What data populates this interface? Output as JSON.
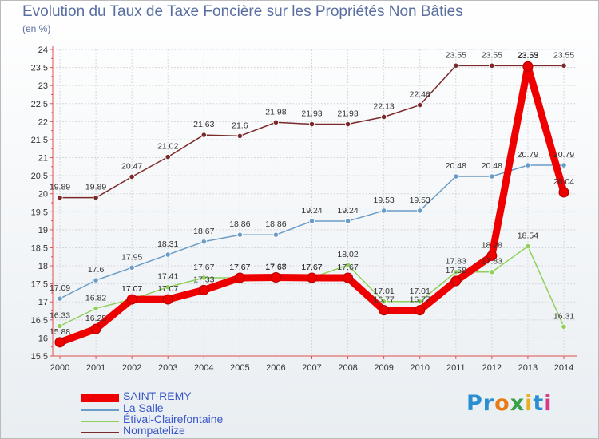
{
  "colors": {
    "axis_label": "#333333",
    "title": "#5a6fa0",
    "legend_text": "#3a58c8"
  },
  "brand": {
    "text": "Proxiti",
    "letter_colors": [
      "#2a8fd0",
      "#2a8fd0",
      "#e87a18",
      "#3aa04a",
      "#e8b020",
      "#2a8fd0",
      "#d83a8a"
    ]
  },
  "chart_data": {
    "type": "line",
    "title": "Evolution du Taux de Taxe Foncière sur les Propriétés Non Bâties",
    "ylabel": "(en %)",
    "xlabel": "",
    "ylim": [
      15.5,
      24
    ],
    "y_ticks": [
      "15.5",
      "16",
      "16.5",
      "17",
      "17.5",
      "18",
      "18.5",
      "19",
      "19.5",
      "20",
      "20.5",
      "21",
      "21.5",
      "22",
      "22.5",
      "23",
      "23.5",
      "24"
    ],
    "categories": [
      "2000",
      "2001",
      "2002",
      "2003",
      "2004",
      "2005",
      "2006",
      "2007",
      "2008",
      "2009",
      "2010",
      "2011",
      "2012",
      "2013",
      "2014"
    ],
    "series": [
      {
        "name": "Nompatelize",
        "color": "#7a2a2a",
        "values": [
          19.89,
          19.89,
          20.47,
          21.02,
          21.63,
          21.6,
          21.98,
          21.93,
          21.93,
          22.13,
          22.46,
          23.55,
          23.55,
          23.55,
          23.55
        ],
        "labels": [
          "19.89",
          "19.89",
          "20.47",
          "21.02",
          "21.63",
          "21.6",
          "21.98",
          "21.93",
          "21.93",
          "22.13",
          "22.46",
          "23.55",
          "23.55",
          "23.55",
          "23.55"
        ]
      },
      {
        "name": "La Salle",
        "color": "#6a9cc8",
        "values": [
          17.09,
          17.6,
          17.95,
          18.31,
          18.67,
          18.86,
          18.86,
          19.24,
          19.24,
          19.53,
          19.53,
          20.48,
          20.48,
          20.79,
          20.79
        ],
        "labels": [
          "17.09",
          "17.6",
          "17.95",
          "18.31",
          "18.67",
          "18.86",
          "18.86",
          "19.24",
          "19.24",
          "19.53",
          "19.53",
          "20.48",
          "20.48",
          "20.79",
          "20.79"
        ]
      },
      {
        "name": "Étival-Clairefontaine",
        "color": "#8ed05a",
        "values": [
          16.33,
          16.82,
          17.07,
          17.41,
          17.67,
          17.67,
          17.67,
          17.67,
          18.02,
          17.01,
          17.01,
          17.83,
          17.83,
          18.54,
          16.31
        ],
        "labels": [
          "16.33",
          "16.82",
          "17.07",
          "17.41",
          "17.67",
          "17.67",
          "17.67",
          "17.67",
          "18.02",
          "17.01",
          "17.01",
          "17.83",
          "17.83",
          "18.54",
          "16.31"
        ]
      },
      {
        "name": "SAINT-REMY",
        "color": "#ee0000",
        "values": [
          15.88,
          16.25,
          17.07,
          17.07,
          17.33,
          17.67,
          17.68,
          17.67,
          17.67,
          16.77,
          16.77,
          17.58,
          18.28,
          23.53,
          20.04
        ],
        "labels": [
          "15.88",
          "16.25",
          "17.07",
          "17.07",
          "17.33",
          "17.67",
          "17.68",
          "17.67",
          "17.67",
          "16.77",
          "16.77",
          "17.58",
          "18.28",
          "23.53",
          "20.04"
        ]
      }
    ],
    "legend": [
      "SAINT-REMY",
      "La Salle",
      "Étival-Clairefontaine",
      "Nompatelize"
    ]
  }
}
